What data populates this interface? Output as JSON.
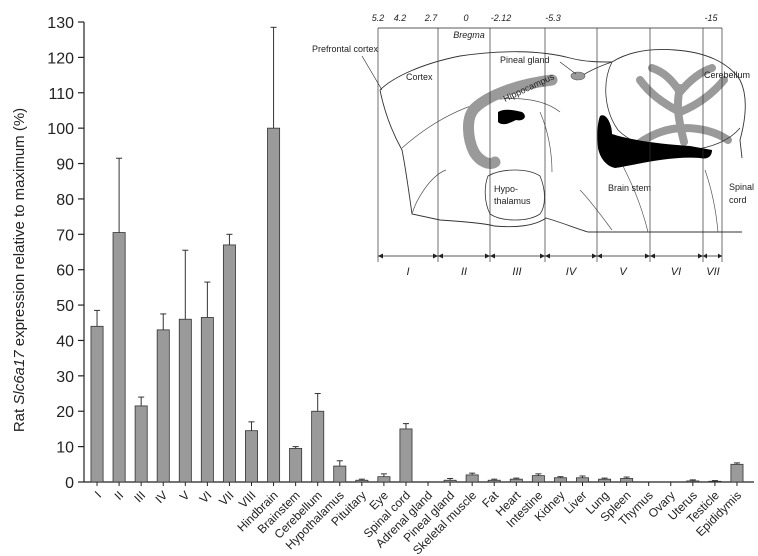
{
  "chart_data": {
    "type": "bar",
    "ylabel_prefix": "Rat ",
    "ylabel_gene": "Slc6a17",
    "ylabel_suffix": " expression relative to maximum (%)",
    "ylim": [
      0,
      130
    ],
    "yticks": [
      "0",
      "10",
      "20",
      "30",
      "40",
      "50",
      "60",
      "70",
      "80",
      "90",
      "100",
      "110",
      "120",
      "130"
    ],
    "categories": [
      "I",
      "II",
      "III",
      "IV",
      "V",
      "VI",
      "VII",
      "VIII",
      "Hindbrain",
      "Brainstem",
      "Cerebellum",
      "Hypothalamus",
      "Pituitary",
      "Eye",
      "Spinal cord",
      "Adrenal gland",
      "Pineal gland",
      "Skeletal muscle",
      "Fat",
      "Heart",
      "Intestine",
      "Kidney",
      "Liver",
      "Lung",
      "Spleen",
      "Thymus",
      "Ovary",
      "Uterus",
      "Testicle",
      "Epididymis"
    ],
    "values": [
      44,
      70.5,
      21.5,
      43,
      46,
      46.5,
      67,
      14.5,
      100,
      9.5,
      20,
      4.5,
      0.5,
      1.5,
      15,
      0,
      0.5,
      2,
      0.5,
      0.8,
      1.8,
      1.2,
      1.2,
      0.8,
      1,
      0,
      0,
      0.3,
      0.2,
      5
    ],
    "errors": [
      4.5,
      21,
      2.5,
      4.5,
      19.5,
      10,
      3,
      2.5,
      28.5,
      0.5,
      5,
      1.5,
      0.3,
      0.8,
      1.5,
      0,
      0.5,
      0.5,
      0.3,
      0.3,
      0.5,
      0.3,
      0.5,
      0.3,
      0.4,
      0,
      0,
      0.3,
      0.2,
      0.4
    ],
    "bar_color": "#9a9a9a",
    "grid": false
  },
  "inset": {
    "bregma_label": "Bregma",
    "bregma_values": [
      "5.2",
      "4.2",
      "2.7",
      "0",
      "-2.12",
      "-5.3",
      "-15"
    ],
    "regions": {
      "prefrontal": "Prefrontal cortex",
      "cortex": "Cortex",
      "pineal": "Pineal gland",
      "hippocampus": "Hippocampus",
      "cerebellum": "Cerebellum",
      "hypo_line1": "Hypo-",
      "hypo_line2": "thalamus",
      "brainstem": "Brain stem",
      "spinal_line1": "Spinal",
      "spinal_line2": "cord"
    },
    "sections": [
      "I",
      "II",
      "III",
      "IV",
      "V",
      "VI",
      "VII"
    ]
  }
}
